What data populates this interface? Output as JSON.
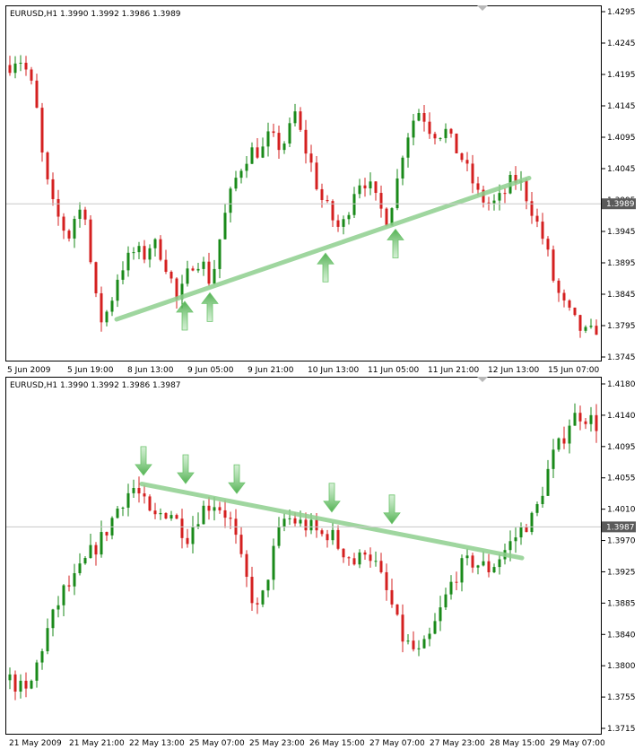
{
  "colors": {
    "bull": "#1a8a1a",
    "bear": "#d42020",
    "trend": "#8fd08f",
    "frame": "#000000",
    "price_label_bg": "#5a5a5a"
  },
  "panels": [
    {
      "header": "EURUSD,H1  1.3990 1.3992 1.3986 1.3989",
      "current_price_label": "1.3989",
      "marker_icon": "arrow-up-icon",
      "chart_data": {
        "type": "candlestick",
        "symbol": "EURUSD",
        "timeframe": "H1",
        "ohlc_last": {
          "open": 1.399,
          "high": 1.3992,
          "low": 1.3986,
          "close": 1.3989
        },
        "current_price": 1.3989,
        "ylim": [
          1.3745,
          1.4295
        ],
        "y_ticks": [
          "1.4295",
          "1.4245",
          "1.4195",
          "1.4145",
          "1.4095",
          "1.4045",
          "1.3995",
          "1.3945",
          "1.3895",
          "1.3845",
          "1.3795",
          "1.3745"
        ],
        "x_ticks": [
          "5 Jun 2009",
          "5 Jun 19:00",
          "8 Jun 13:00",
          "9 Jun 05:00",
          "9 Jun 21:00",
          "10 Jun 13:00",
          "11 Jun 05:00",
          "11 Jun 21:00",
          "12 Jun 13:00",
          "15 Jun 07:00"
        ],
        "path": [
          1.421,
          1.4225,
          1.42,
          1.416,
          1.405,
          1.399,
          1.396,
          1.3935,
          1.398,
          1.3975,
          1.385,
          1.38,
          1.383,
          1.388,
          1.39,
          1.3915,
          1.3905,
          1.393,
          1.391,
          1.388,
          1.383,
          1.387,
          1.39,
          1.3895,
          1.386,
          1.393,
          1.399,
          1.403,
          1.406,
          1.4075,
          1.407,
          1.41,
          1.408,
          1.409,
          1.4135,
          1.4085,
          1.405,
          1.4,
          1.398,
          1.395,
          1.396,
          1.401,
          1.403,
          1.4015,
          1.3985,
          1.3965,
          1.401,
          1.408,
          1.412,
          1.414,
          1.411,
          1.41,
          1.4105,
          1.408,
          1.406,
          1.403,
          1.4,
          1.399,
          1.399,
          1.4005,
          1.403,
          1.402,
          1.399,
          1.3955,
          1.392,
          1.386,
          1.383,
          1.381,
          1.379,
          1.378,
          1.379
        ],
        "trendline": {
          "from": [
            "8 Jun 13:00",
            1.3805
          ],
          "to": [
            "12 Jun 13:00",
            1.403
          ]
        },
        "markers": [
          "up",
          "up",
          "up",
          "up"
        ]
      }
    },
    {
      "header": "EURUSD,H1  1.3990 1.3992 1.3986 1.3987",
      "current_price_label": "1.3987",
      "marker_icon": "arrow-down-icon",
      "chart_data": {
        "type": "candlestick",
        "symbol": "EURUSD",
        "timeframe": "H1",
        "ohlc_last": {
          "open": 1.399,
          "high": 1.3992,
          "low": 1.3986,
          "close": 1.3987
        },
        "current_price": 1.3987,
        "ylim": [
          1.3715,
          1.418
        ],
        "y_ticks": [
          "1.4180",
          "1.4140",
          "1.4095",
          "1.4055",
          "1.4010",
          "1.3970",
          "1.3925",
          "1.3885",
          "1.3840",
          "1.3800",
          "1.3755",
          "1.3715"
        ],
        "x_ticks": [
          "21 May 2009",
          "21 May 21:00",
          "22 May 13:00",
          "25 May 07:00",
          "25 May 23:00",
          "26 May 15:00",
          "27 May 07:00",
          "27 May 23:00",
          "28 May 15:00",
          "29 May 07:00"
        ],
        "path": [
          1.378,
          1.377,
          1.376,
          1.38,
          1.384,
          1.387,
          1.39,
          1.391,
          1.393,
          1.395,
          1.3965,
          1.3985,
          1.401,
          1.403,
          1.404,
          1.402,
          1.3995,
          1.4005,
          1.401,
          1.399,
          1.3975,
          1.4,
          1.4015,
          1.402,
          1.401,
          1.399,
          1.394,
          1.39,
          1.387,
          1.392,
          1.397,
          1.4,
          1.3995,
          1.399,
          1.3985,
          1.3975,
          1.398,
          1.396,
          1.395,
          1.3935,
          1.396,
          1.394,
          1.391,
          1.388,
          1.384,
          1.3825,
          1.3815,
          1.383,
          1.386,
          1.389,
          1.392,
          1.3935,
          1.394,
          1.3935,
          1.393,
          1.3945,
          1.396,
          1.3975,
          1.399,
          1.4,
          1.404,
          1.408,
          1.41,
          1.413,
          1.414,
          1.4135,
          1.4125
        ],
        "trendline": {
          "from": [
            "22 May 13:00",
            1.4045
          ],
          "to": [
            "28 May 15:00",
            1.3945
          ]
        },
        "markers": [
          "down",
          "down",
          "down",
          "down",
          "down"
        ]
      }
    }
  ]
}
